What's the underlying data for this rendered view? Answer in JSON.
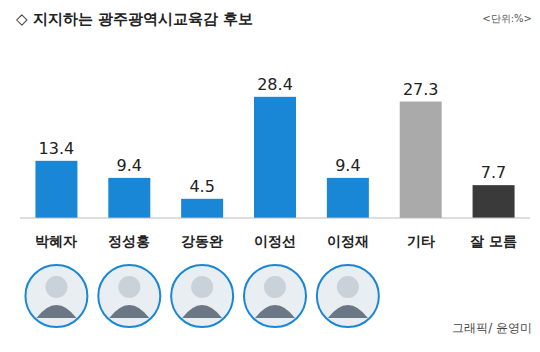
{
  "chart_data": {
    "type": "bar",
    "title": "◇ 지지하는 광주광역시교육감 후보",
    "annotations": [
      "<단위:%>",
      "그래픽/ 윤영미"
    ],
    "categories": [
      "박혜자",
      "정성홍",
      "강동완",
      "이정선",
      "이정재",
      "기타",
      "잘 모름"
    ],
    "values": [
      13.4,
      9.4,
      4.5,
      28.4,
      9.4,
      27.3,
      7.7
    ],
    "colors": [
      "#1a86d6",
      "#1a86d6",
      "#1a86d6",
      "#1a86d6",
      "#1a86d6",
      "#aaaaaa",
      "#3a3a3a"
    ],
    "ylim": [
      0,
      30
    ],
    "data_labels": true,
    "tick_labels": "x",
    "grid": false
  }
}
